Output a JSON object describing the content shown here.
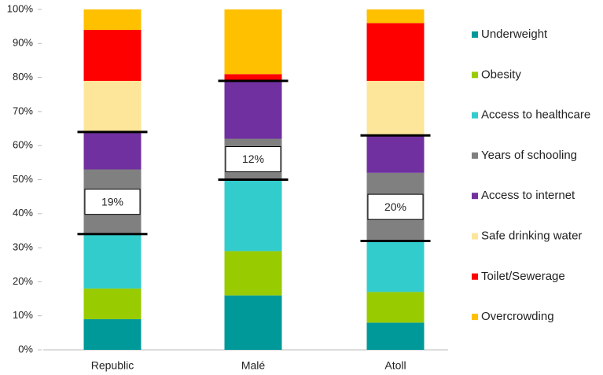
{
  "chart_data": {
    "type": "stacked_bar",
    "categories": [
      "Republic",
      "Malé",
      "Atoll"
    ],
    "series": [
      {
        "name": "Underweight",
        "color": "#009999",
        "values": [
          9,
          16,
          8
        ]
      },
      {
        "name": "Obesity",
        "color": "#99cc00",
        "values": [
          9,
          13,
          9
        ]
      },
      {
        "name": "Access to healthcare",
        "color": "#33cccc",
        "values": [
          16,
          21,
          15
        ]
      },
      {
        "name": "Years of schooling",
        "color": "#808080",
        "values": [
          19,
          12,
          20
        ],
        "value_labels": [
          "19%",
          "12%",
          "20%"
        ]
      },
      {
        "name": "Access to internet",
        "color": "#7030a0",
        "values": [
          11,
          17,
          11
        ]
      },
      {
        "name": "Safe drinking water",
        "color": "#fde59a",
        "values": [
          15,
          0,
          16
        ]
      },
      {
        "name": "Toilet/Sewerage",
        "color": "#ff0000",
        "values": [
          15,
          2,
          17
        ]
      },
      {
        "name": "Overcrowding",
        "color": "#ffc000",
        "values": [
          6,
          19,
          4
        ]
      }
    ],
    "ylim": [
      0,
      100
    ],
    "yticks": [
      {
        "value": 0,
        "label": "0%"
      },
      {
        "value": 10,
        "label": "10%"
      },
      {
        "value": 20,
        "label": "20%"
      },
      {
        "value": 30,
        "label": "30%"
      },
      {
        "value": 40,
        "label": "40%"
      },
      {
        "value": 50,
        "label": "50%"
      },
      {
        "value": 60,
        "label": "60%"
      },
      {
        "value": 70,
        "label": "70%"
      },
      {
        "value": 80,
        "label": "80%"
      },
      {
        "value": 90,
        "label": "90%"
      },
      {
        "value": 100,
        "label": "100%"
      }
    ],
    "legend": "right",
    "grid": false
  }
}
